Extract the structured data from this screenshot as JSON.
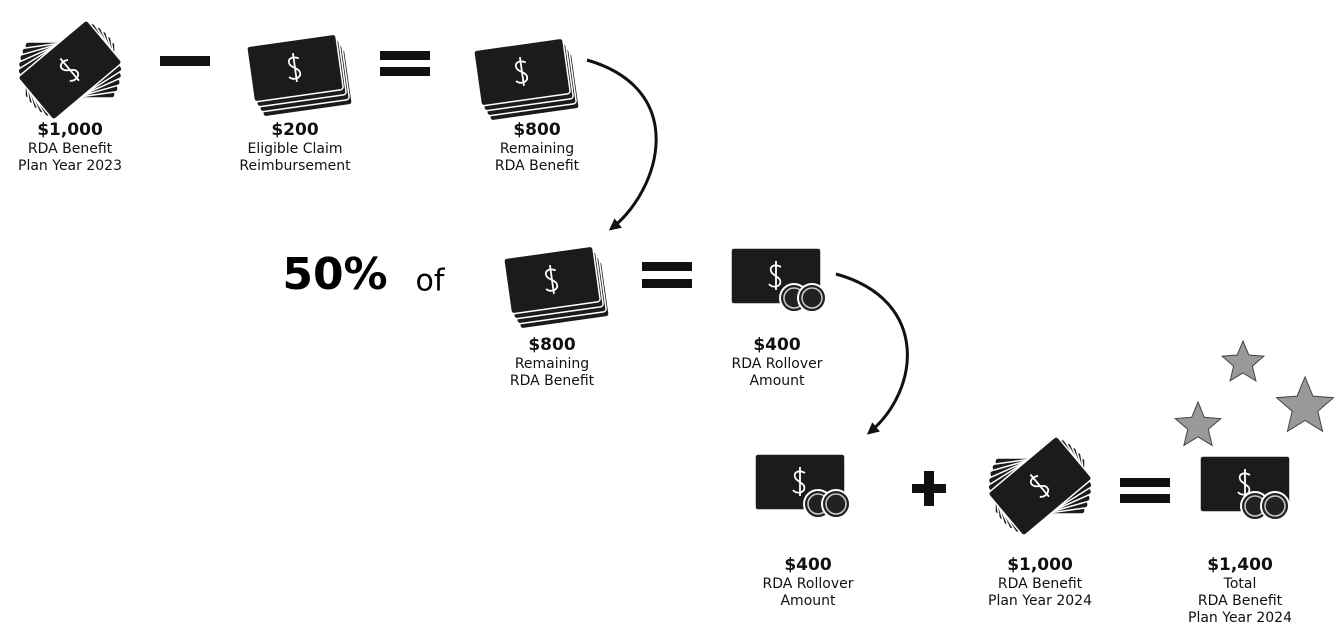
{
  "rows": [
    {
      "items": [
        {
          "amount": "$1,000",
          "lines": [
            "RDA Benefit",
            "Plan Year 2023"
          ]
        },
        {
          "amount": "$200",
          "lines": [
            "Eligible Claim",
            "Reimbursement"
          ]
        },
        {
          "amount": "$800",
          "lines": [
            "Remaining",
            "RDA Benefit"
          ]
        }
      ]
    },
    {
      "percent": "50%",
      "of": "of",
      "items": [
        {
          "amount": "$800",
          "lines": [
            "Remaining",
            "RDA Benefit"
          ]
        },
        {
          "amount": "$400",
          "lines": [
            "RDA Rollover",
            "Amount"
          ]
        }
      ]
    },
    {
      "items": [
        {
          "amount": "$400",
          "lines": [
            "RDA Rollover",
            "Amount"
          ]
        },
        {
          "amount": "$1,000",
          "lines": [
            "RDA Benefit",
            "Plan Year 2024"
          ]
        },
        {
          "amount": "$1,400",
          "lines": [
            "Total",
            "RDA Benefit",
            "Plan Year 2024"
          ]
        }
      ]
    }
  ]
}
